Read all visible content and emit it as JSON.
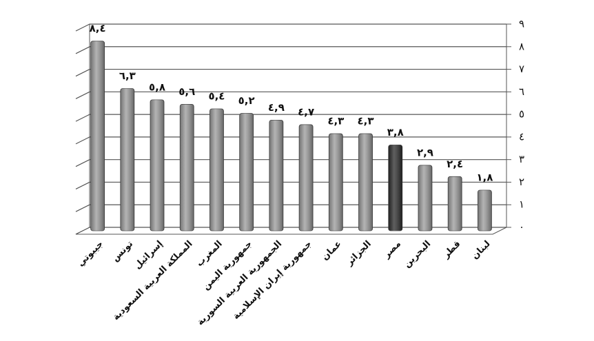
{
  "chart_data": {
    "type": "bar",
    "categories": [
      "جيبوتي",
      "تونس",
      "إسرائيل",
      "المملكة العربية السعودية",
      "المغرب",
      "جمهورية اليمن",
      "الجمهورية العربية السورية",
      "جمهورية إيران الإسلامية",
      "عمان",
      "الجزائر",
      "مصر",
      "البحرين",
      "قطر",
      "لبنان"
    ],
    "values": [
      8.4,
      6.3,
      5.8,
      5.6,
      5.4,
      5.2,
      4.9,
      4.7,
      4.3,
      4.3,
      3.8,
      2.9,
      2.4,
      1.8
    ],
    "value_labels": [
      "٨,٤",
      "٦,٣",
      "٥,٨",
      "٥,٦",
      "٥,٤",
      "٥,٢",
      "٤,٩",
      "٤,٧",
      "٤,٣",
      "٤,٣",
      "٣,٨",
      "٢,٩",
      "٢,٤",
      "١,٨"
    ],
    "colors": [
      "#9a9a9a",
      "#9a9a9a",
      "#9a9a9a",
      "#9a9a9a",
      "#9a9a9a",
      "#9a9a9a",
      "#9a9a9a",
      "#9a9a9a",
      "#9a9a9a",
      "#9a9a9a",
      "#2a2a2a",
      "#9a9a9a",
      "#9a9a9a",
      "#9a9a9a"
    ],
    "ylim": [
      0,
      9
    ],
    "yticks": [
      {
        "value": 0,
        "label": "٠"
      },
      {
        "value": 1,
        "label": "١"
      },
      {
        "value": 2,
        "label": "٢"
      },
      {
        "value": 3,
        "label": "٣"
      },
      {
        "value": 4,
        "label": "٤"
      },
      {
        "value": 5,
        "label": "٥"
      },
      {
        "value": 6,
        "label": "٦"
      },
      {
        "value": 7,
        "label": "٧"
      },
      {
        "value": 8,
        "label": "٨"
      },
      {
        "value": 9,
        "label": "٩"
      }
    ],
    "grid": true
  }
}
